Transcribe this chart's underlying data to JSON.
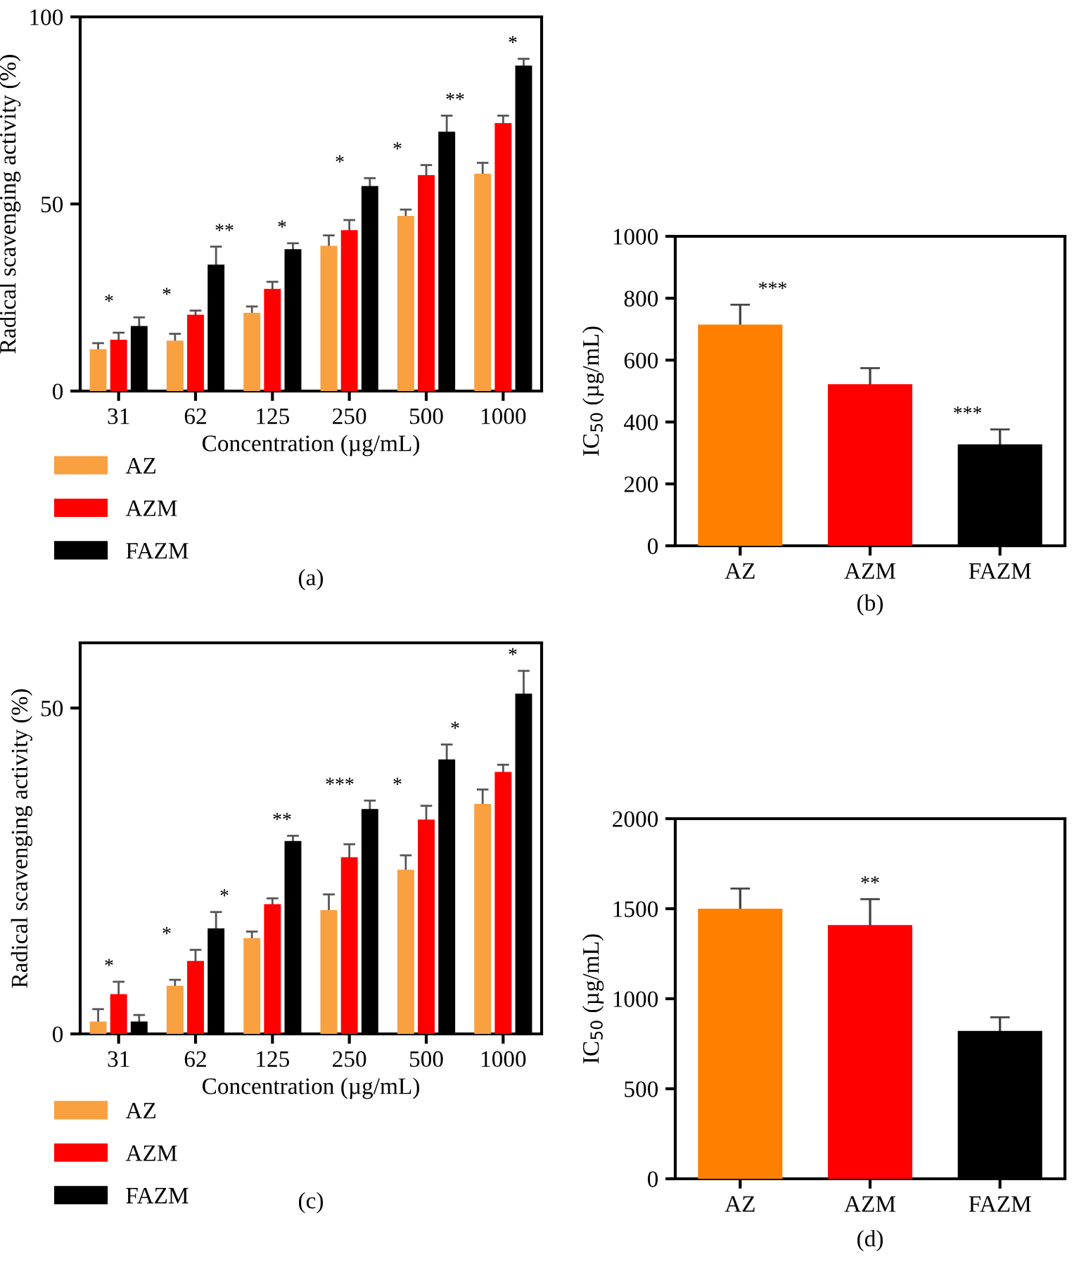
{
  "chart_data": [
    {
      "type": "bar",
      "categories": [
        "31",
        "62",
        "125",
        "250",
        "500",
        "1000"
      ],
      "xlabel": "Concentration (µg/mL)",
      "ylabel": "Radical scavenging activity (%)",
      "ylim": [
        0,
        100
      ],
      "yticks": [
        0,
        50,
        100
      ],
      "legend": "bottom left",
      "series": [
        {
          "name": "AZ",
          "color": "#f9a040",
          "values": [
            11.2,
            13.5,
            20.9,
            38.8,
            46.8,
            58.1
          ],
          "errors": [
            1.6,
            1.8,
            1.7,
            2.8,
            1.7,
            2.9
          ]
        },
        {
          "name": "AZM",
          "color": "#ff0000",
          "values": [
            13.7,
            20.4,
            27.3,
            43.0,
            57.7,
            71.6
          ],
          "errors": [
            1.9,
            1.1,
            1.9,
            2.7,
            2.7,
            2.0
          ]
        },
        {
          "name": "FAZM",
          "color": "#000000",
          "values": [
            17.4,
            33.8,
            37.9,
            54.8,
            69.3,
            87.0
          ],
          "errors": [
            2.3,
            4.8,
            1.6,
            2.1,
            4.3,
            1.8
          ]
        }
      ],
      "annotations": [
        "*",
        "*",
        "**",
        "*",
        "*",
        "*",
        "**",
        "*",
        "(a)"
      ]
    },
    {
      "type": "bar",
      "categories": [
        "AZ",
        "AZM",
        "FAZM"
      ],
      "ylabel": "IC$_{50}$ (µg/mL)",
      "ylim": [
        0,
        1000
      ],
      "yticks": [
        0,
        200,
        400,
        600,
        800,
        1000
      ],
      "values": [
        715,
        522,
        328
      ],
      "colors": [
        "#ff8000",
        "#ff0000",
        "#000000"
      ],
      "errors": [
        64,
        52,
        48
      ],
      "annotations": [
        "***",
        "***",
        "(b)"
      ]
    },
    {
      "type": "bar",
      "categories": [
        "31",
        "62",
        "125",
        "250",
        "500",
        "1000"
      ],
      "xlabel": "Concentration (µg/mL)",
      "ylabel": "Radical scavenging activity (%)",
      "ylim": [
        0,
        60
      ],
      "yticks": [
        0,
        50
      ],
      "legend": "bottom left",
      "series": [
        {
          "name": "AZ",
          "color": "#f9a040",
          "values": [
            1.9,
            7.4,
            14.7,
            19.0,
            25.2,
            35.3
          ],
          "errors": [
            1.9,
            0.9,
            1.0,
            2.4,
            2.2,
            2.2
          ]
        },
        {
          "name": "AZM",
          "color": "#ff0000",
          "values": [
            6.1,
            11.2,
            19.9,
            27.1,
            32.9,
            40.2
          ],
          "errors": [
            1.9,
            1.7,
            0.9,
            2.0,
            2.1,
            1.1
          ]
        },
        {
          "name": "FAZM",
          "color": "#000000",
          "values": [
            1.9,
            16.2,
            29.6,
            34.5,
            42.1,
            52.2
          ],
          "errors": [
            1.0,
            2.5,
            0.8,
            1.3,
            2.3,
            3.5
          ]
        }
      ],
      "annotations": [
        "*",
        "*",
        "*",
        "**",
        "***",
        "*",
        "*",
        "*",
        "(c)"
      ]
    },
    {
      "type": "bar",
      "categories": [
        "AZ",
        "AZM",
        "FAZM"
      ],
      "ylabel": "IC$_{50}$ (µg/mL)",
      "ylim": [
        0,
        2000
      ],
      "yticks": [
        0,
        500,
        1000,
        1500,
        2000
      ],
      "values": [
        1500,
        1409,
        821
      ],
      "colors": [
        "#ff8000",
        "#ff0000",
        "#000000"
      ],
      "errors": [
        112,
        144,
        76
      ],
      "annotations": [
        "**",
        "(d)"
      ]
    }
  ]
}
